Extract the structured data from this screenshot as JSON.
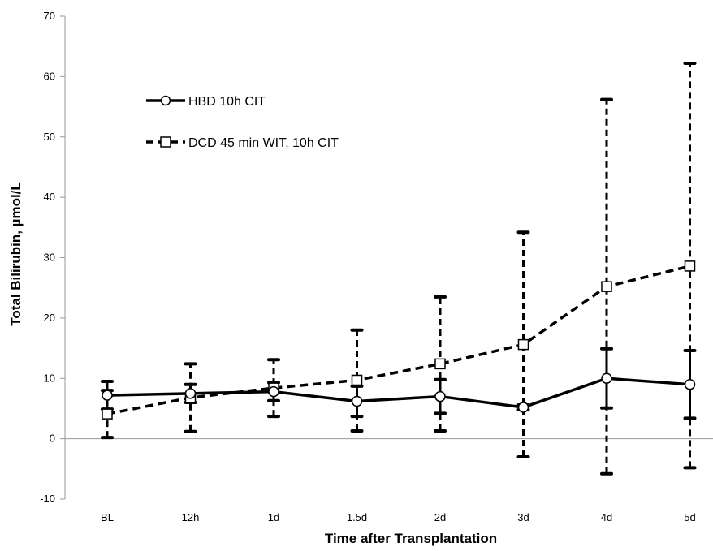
{
  "chart_data": {
    "type": "line",
    "xlabel": "Time after Transplantation",
    "ylabel": "Total Bilirubin, µmol/L",
    "categories": [
      "BL",
      "12h",
      "1d",
      "1.5d",
      "2d",
      "3d",
      "4d",
      "5d"
    ],
    "ylim": [
      -10,
      70
    ],
    "yticks": [
      -10,
      0,
      10,
      20,
      30,
      40,
      50,
      60,
      70
    ],
    "grid": false,
    "legend_position": "top-left",
    "series": [
      {
        "name": "HBD 10h CIT",
        "marker": "circle",
        "line_style": "solid",
        "color": "#000000",
        "values": [
          7.2,
          7.5,
          7.8,
          6.2,
          7.0,
          5.2,
          10.0,
          9.0
        ],
        "error_lower": [
          4.9,
          6.0,
          6.3,
          3.7,
          4.2,
          4.8,
          5.1,
          3.4
        ],
        "error_upper": [
          9.5,
          9.0,
          9.3,
          8.7,
          9.8,
          5.6,
          14.9,
          14.6
        ]
      },
      {
        "name": "DCD 45 min WIT, 10h CIT",
        "marker": "square",
        "line_style": "dashed",
        "color": "#000000",
        "values": [
          4.1,
          6.8,
          8.4,
          9.7,
          12.4,
          15.6,
          25.2,
          28.6
        ],
        "error_lower": [
          0.2,
          1.2,
          3.7,
          1.3,
          1.3,
          -3.0,
          -5.8,
          -4.8
        ],
        "error_upper": [
          8.0,
          12.4,
          13.1,
          18.0,
          23.5,
          34.2,
          56.2,
          62.2
        ]
      }
    ]
  }
}
